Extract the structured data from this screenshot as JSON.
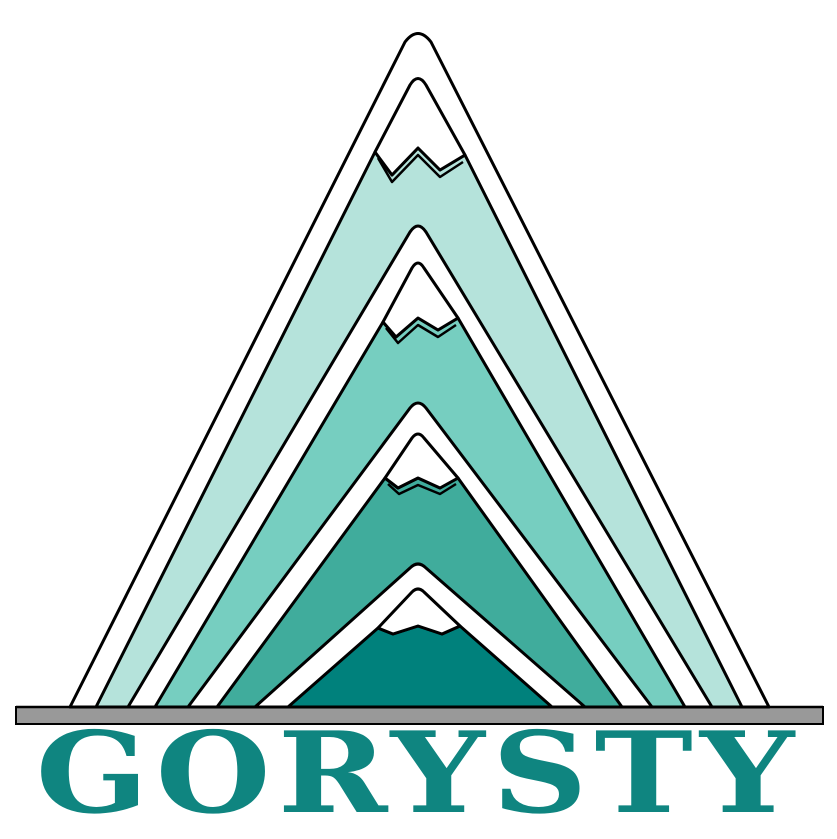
{
  "logo": {
    "wordmark": "GORYSTY",
    "colors": {
      "wordmark": "#0f8580",
      "outline": "#000000",
      "band_outer": "#b5e3db",
      "band_second": "#76ceC0",
      "band_third": "#40ac9c",
      "band_core": "#00817c",
      "snow": "#ffffff",
      "ground_bar": "#999999"
    }
  }
}
